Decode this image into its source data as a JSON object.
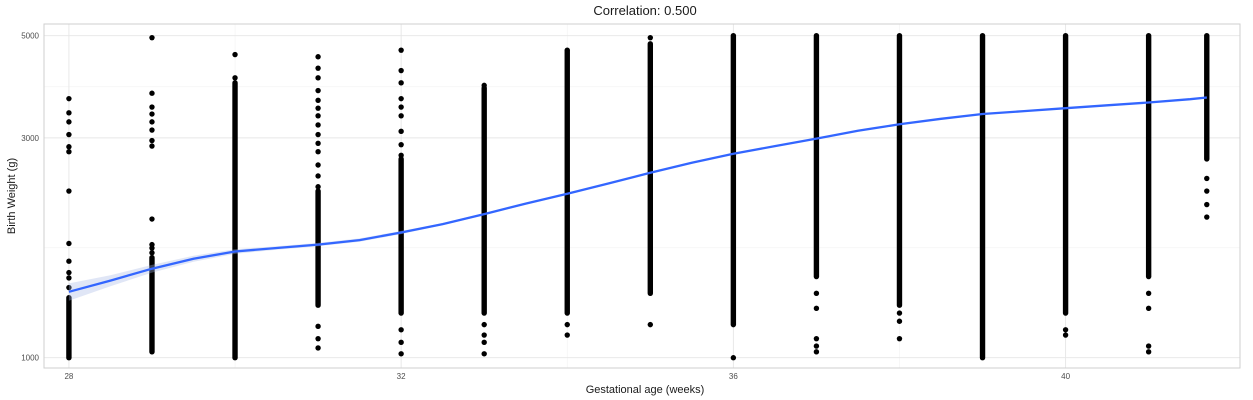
{
  "chart_data": {
    "type": "scatter",
    "title": "Correlation: 0.500",
    "xlabel": "Gestational age (weeks)",
    "ylabel": "Birth Weight (g)",
    "x_scale": "linear",
    "y_scale": "log10",
    "xlim": [
      27.7,
      42.1
    ],
    "ylim": [
      950,
      5300
    ],
    "x_ticks": [
      28,
      32,
      36,
      40
    ],
    "y_ticks": [
      1000,
      3000,
      5000
    ],
    "grid": true,
    "legend": "none",
    "colors": {
      "points": "#000000",
      "trend": "#3366ff",
      "band": "#a6b7e6",
      "grid": "#e6e6e6"
    },
    "series": [
      {
        "type": "points",
        "columns": [
          {
            "x": 28,
            "runs": [
              [
                1000,
                1350
              ]
            ],
            "dots": [
              1420,
              1490,
              1530,
              1620,
              1770,
              2300,
              2800,
              2870,
              3050,
              3250,
              3400,
              3650
            ]
          },
          {
            "x": 29,
            "runs": [
              [
                1030,
                1650
              ]
            ],
            "dots": [
              1690,
              1730,
              1760,
              2000,
              2880,
              2960,
              3120,
              3250,
              3380,
              3500,
              3750,
              4950
            ]
          },
          {
            "x": 30,
            "runs": [
              [
                1000,
                3950
              ]
            ],
            "dots": [
              4050,
              4550
            ]
          },
          {
            "x": 31,
            "runs": [
              [
                1300,
                2300
              ]
            ],
            "dots": [
              1050,
              1100,
              1170,
              2350,
              2480,
              2620,
              2800,
              2920,
              3050,
              3200,
              3350,
              3480,
              3620,
              3800,
              4050,
              4250,
              4500
            ]
          },
          {
            "x": 32,
            "runs": [
              [
                1250,
                2700
              ]
            ],
            "dots": [
              1020,
              1080,
              1150,
              2750,
              2900,
              3100,
              3350,
              3500,
              3650,
              3950,
              4200,
              4650
            ]
          },
          {
            "x": 33,
            "runs": [
              [
                1250,
                3850
              ]
            ],
            "dots": [
              1020,
              1080,
              1120,
              1180,
              3900
            ]
          },
          {
            "x": 34,
            "runs": [
              [
                1250,
                4650
              ]
            ],
            "dots": [
              1120,
              1180
            ]
          },
          {
            "x": 35,
            "runs": [
              [
                1380,
                4800
              ]
            ],
            "dots": [
              1180,
              4950
            ]
          },
          {
            "x": 36,
            "runs": [
              [
                1180,
                5000
              ]
            ],
            "dots": [
              1000
            ]
          },
          {
            "x": 37,
            "runs": [
              [
                1500,
                5000
              ]
            ],
            "dots": [
              1030,
              1060,
              1100,
              1280,
              1380
            ]
          },
          {
            "x": 38,
            "runs": [
              [
                1300,
                5000
              ]
            ],
            "dots": [
              1100,
              1200,
              1250
            ]
          },
          {
            "x": 39,
            "runs": [
              [
                1000,
                5000
              ]
            ],
            "dots": []
          },
          {
            "x": 40,
            "runs": [
              [
                1250,
                5000
              ]
            ],
            "dots": [
              1120,
              1150
            ]
          },
          {
            "x": 41,
            "runs": [
              [
                1500,
                5000
              ]
            ],
            "dots": [
              1030,
              1060,
              1280,
              1380
            ]
          },
          {
            "x": 41.7,
            "runs": [
              [
                2700,
                5000
              ]
            ],
            "dots": [
              2020,
              2150,
              2300,
              2450
            ]
          }
        ]
      },
      {
        "type": "smooth",
        "x": [
          28,
          28.5,
          29,
          29.5,
          30,
          30.5,
          31,
          31.5,
          32,
          32.5,
          33,
          33.5,
          34,
          34.5,
          35,
          35.5,
          36,
          36.5,
          37,
          37.5,
          38,
          38.5,
          39,
          39.5,
          40,
          40.5,
          41,
          41.5,
          41.7
        ],
        "y": [
          1390,
          1470,
          1560,
          1640,
          1700,
          1730,
          1760,
          1800,
          1870,
          1950,
          2050,
          2160,
          2270,
          2390,
          2520,
          2650,
          2770,
          2880,
          2990,
          3110,
          3210,
          3300,
          3380,
          3430,
          3480,
          3530,
          3580,
          3640,
          3670
        ],
        "band": [
          60,
          40,
          30,
          25,
          20,
          15,
          15,
          15,
          15,
          10,
          10,
          10,
          10,
          10,
          10,
          10,
          10,
          10,
          10,
          10,
          10,
          10,
          10,
          10,
          10,
          10,
          10,
          15,
          20
        ]
      }
    ]
  }
}
